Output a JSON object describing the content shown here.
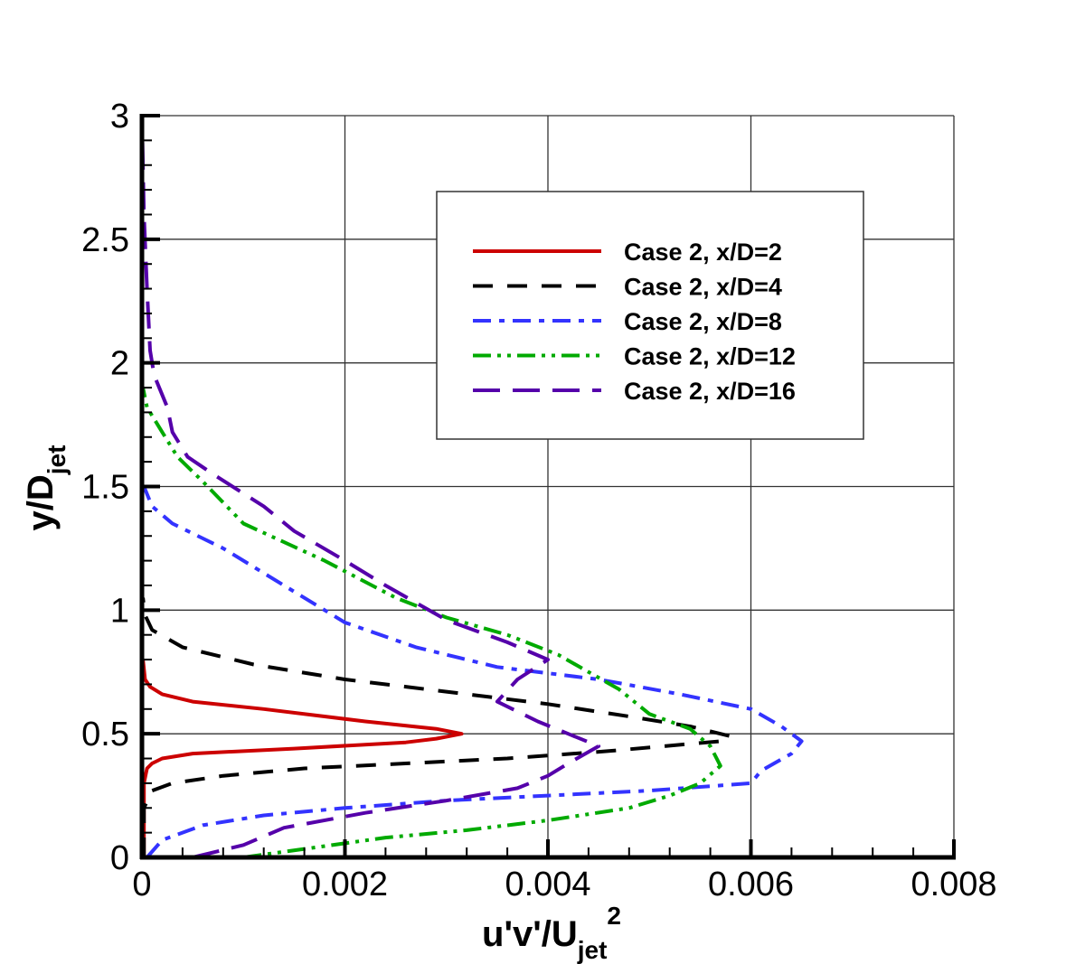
{
  "chart_data": {
    "type": "line",
    "title": "",
    "xlabel": "u'v'/U_jet^2",
    "ylabel": "y/D_jet",
    "xlabel_parts": {
      "main": "u'v'/U",
      "sub": "jet",
      "sup": "2"
    },
    "ylabel_parts": {
      "main": "y/D",
      "sub": "jet"
    },
    "xlim": [
      0,
      0.008
    ],
    "ylim": [
      0,
      3
    ],
    "x_ticks": [
      0,
      0.002,
      0.004,
      0.006,
      0.008
    ],
    "x_tick_labels": [
      "0",
      "0.002",
      "0.004",
      "0.006",
      "0.008"
    ],
    "y_ticks": [
      0,
      0.5,
      1,
      1.5,
      2,
      2.5,
      3
    ],
    "y_tick_labels": [
      "0",
      "0.5",
      "1",
      "1.5",
      "2",
      "2.5",
      "3"
    ],
    "grid": true,
    "legend_position": "upper right (inside)",
    "series": [
      {
        "name": "Case 2, x/D=2",
        "color": "#cc0000",
        "style": "solid",
        "points": [
          [
            2e-05,
            0
          ],
          [
            2e-05,
            0.3
          ],
          [
            5e-05,
            0.36
          ],
          [
            0.0001,
            0.38
          ],
          [
            0.0002,
            0.4
          ],
          [
            0.0005,
            0.42
          ],
          [
            0.0015,
            0.44
          ],
          [
            0.0026,
            0.465
          ],
          [
            0.0029,
            0.48
          ],
          [
            0.00315,
            0.5
          ],
          [
            0.0029,
            0.52
          ],
          [
            0.0022,
            0.55
          ],
          [
            0.0012,
            0.6
          ],
          [
            0.0005,
            0.63
          ],
          [
            0.0002,
            0.66
          ],
          [
            8e-05,
            0.69
          ],
          [
            3e-05,
            0.72
          ],
          [
            1e-05,
            0.8
          ]
        ]
      },
      {
        "name": "Case 2, x/D=4",
        "color": "#000000",
        "style": "dashed",
        "points": [
          [
            2e-05,
            0
          ],
          [
            2e-05,
            0.2
          ],
          [
            0.0001,
            0.27
          ],
          [
            0.0003,
            0.3
          ],
          [
            0.0008,
            0.33
          ],
          [
            0.0016,
            0.36
          ],
          [
            0.0026,
            0.38
          ],
          [
            0.0036,
            0.4
          ],
          [
            0.0046,
            0.43
          ],
          [
            0.0057,
            0.47
          ],
          [
            0.0058,
            0.49
          ],
          [
            0.0054,
            0.53
          ],
          [
            0.0048,
            0.57
          ],
          [
            0.004,
            0.62
          ],
          [
            0.003,
            0.67
          ],
          [
            0.002,
            0.72
          ],
          [
            0.0011,
            0.78
          ],
          [
            0.0004,
            0.85
          ],
          [
            0.0001,
            0.92
          ],
          [
            3e-05,
            0.98
          ],
          [
            1e-05,
            1.05
          ]
        ]
      },
      {
        "name": "Case 2, x/D=8",
        "color": "#3333ff",
        "style": "dashdot",
        "points": [
          [
            5e-05,
            0
          ],
          [
            0.0002,
            0.07
          ],
          [
            0.0006,
            0.13
          ],
          [
            0.0012,
            0.17
          ],
          [
            0.002,
            0.2
          ],
          [
            0.003,
            0.23
          ],
          [
            0.004,
            0.25
          ],
          [
            0.005,
            0.27
          ],
          [
            0.006,
            0.3
          ],
          [
            0.0061,
            0.35
          ],
          [
            0.0064,
            0.42
          ],
          [
            0.0065,
            0.47
          ],
          [
            0.0063,
            0.53
          ],
          [
            0.006,
            0.6
          ],
          [
            0.0053,
            0.66
          ],
          [
            0.0045,
            0.72
          ],
          [
            0.0035,
            0.77
          ],
          [
            0.0027,
            0.85
          ],
          [
            0.002,
            0.95
          ],
          [
            0.0014,
            1.1
          ],
          [
            0.0008,
            1.25
          ],
          [
            0.0003,
            1.35
          ],
          [
            0.0001,
            1.42
          ],
          [
            2e-05,
            1.5
          ]
        ]
      },
      {
        "name": "Case 2, x/D=12",
        "color": "#00aa00",
        "style": "dashdotdot",
        "points": [
          [
            0.001,
            0
          ],
          [
            0.0017,
            0.04
          ],
          [
            0.0024,
            0.08
          ],
          [
            0.0032,
            0.11
          ],
          [
            0.004,
            0.15
          ],
          [
            0.0048,
            0.2
          ],
          [
            0.0052,
            0.25
          ],
          [
            0.0055,
            0.3
          ],
          [
            0.0057,
            0.37
          ],
          [
            0.0056,
            0.45
          ],
          [
            0.0054,
            0.52
          ],
          [
            0.005,
            0.58
          ],
          [
            0.0047,
            0.68
          ],
          [
            0.0041,
            0.82
          ],
          [
            0.0036,
            0.9
          ],
          [
            0.003,
            0.97
          ],
          [
            0.0025,
            1.05
          ],
          [
            0.0018,
            1.2
          ],
          [
            0.001,
            1.35
          ],
          [
            0.0006,
            1.52
          ],
          [
            0.00035,
            1.62
          ],
          [
            0.0002,
            1.72
          ],
          [
            5e-05,
            1.82
          ],
          [
            1e-05,
            1.9
          ]
        ]
      },
      {
        "name": "Case 2, x/D=16",
        "color": "#5500aa",
        "style": "longdash",
        "points": [
          [
            0.0005,
            0
          ],
          [
            0.001,
            0.05
          ],
          [
            0.0014,
            0.12
          ],
          [
            0.0022,
            0.18
          ],
          [
            0.003,
            0.23
          ],
          [
            0.0037,
            0.28
          ],
          [
            0.004,
            0.33
          ],
          [
            0.0042,
            0.38
          ],
          [
            0.0045,
            0.45
          ],
          [
            0.0042,
            0.5
          ],
          [
            0.0039,
            0.55
          ],
          [
            0.0035,
            0.63
          ],
          [
            0.0037,
            0.72
          ],
          [
            0.004,
            0.8
          ],
          [
            0.0036,
            0.87
          ],
          [
            0.003,
            0.96
          ],
          [
            0.0024,
            1.1
          ],
          [
            0.002,
            1.2
          ],
          [
            0.0015,
            1.32
          ],
          [
            0.0012,
            1.42
          ],
          [
            0.0007,
            1.55
          ],
          [
            0.00045,
            1.62
          ],
          [
            0.0003,
            1.72
          ],
          [
            0.00025,
            1.82
          ],
          [
            0.00012,
            1.95
          ],
          [
            8e-05,
            2.05
          ],
          [
            5e-05,
            2.3
          ],
          [
            2e-05,
            2.6
          ],
          [
            0.0,
            3.0
          ]
        ]
      }
    ]
  }
}
